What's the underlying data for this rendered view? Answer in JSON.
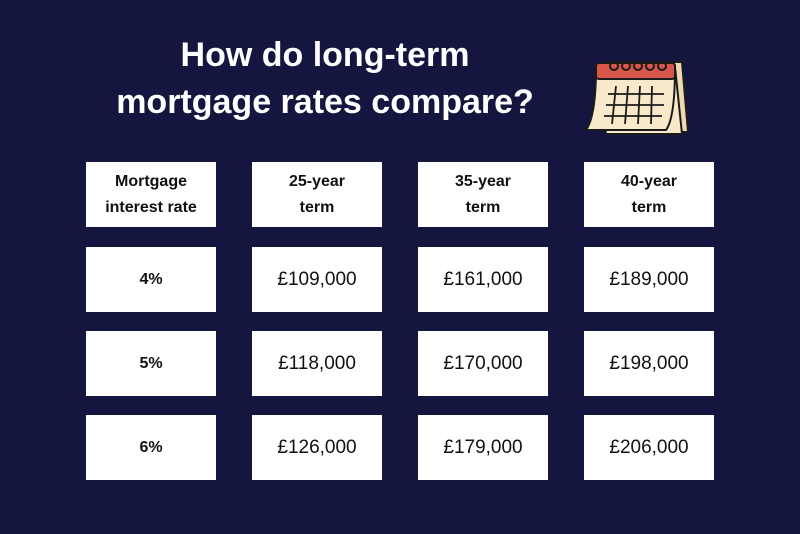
{
  "title": {
    "line1": "How do long-term",
    "line2": "mortgage rates compare?"
  },
  "icon": "calendar-icon",
  "colors": {
    "background": "#15163f",
    "cell": "#ffffff",
    "calendar_top": "#d9574a",
    "calendar_page": "#f7e9c9"
  },
  "table": {
    "headers": [
      {
        "line1": "Mortgage",
        "line2": "interest rate"
      },
      {
        "line1": "25-year",
        "line2": "term"
      },
      {
        "line1": "35-year",
        "line2": "term"
      },
      {
        "line1": "40-year",
        "line2": "term"
      }
    ],
    "rows": [
      {
        "rate": "4%",
        "values": [
          "£109,000",
          "£161,000",
          "£189,000"
        ]
      },
      {
        "rate": "5%",
        "values": [
          "£118,000",
          "£170,000",
          "£198,000"
        ]
      },
      {
        "rate": "6%",
        "values": [
          "£126,000",
          "£179,000",
          "£206,000"
        ]
      }
    ]
  }
}
